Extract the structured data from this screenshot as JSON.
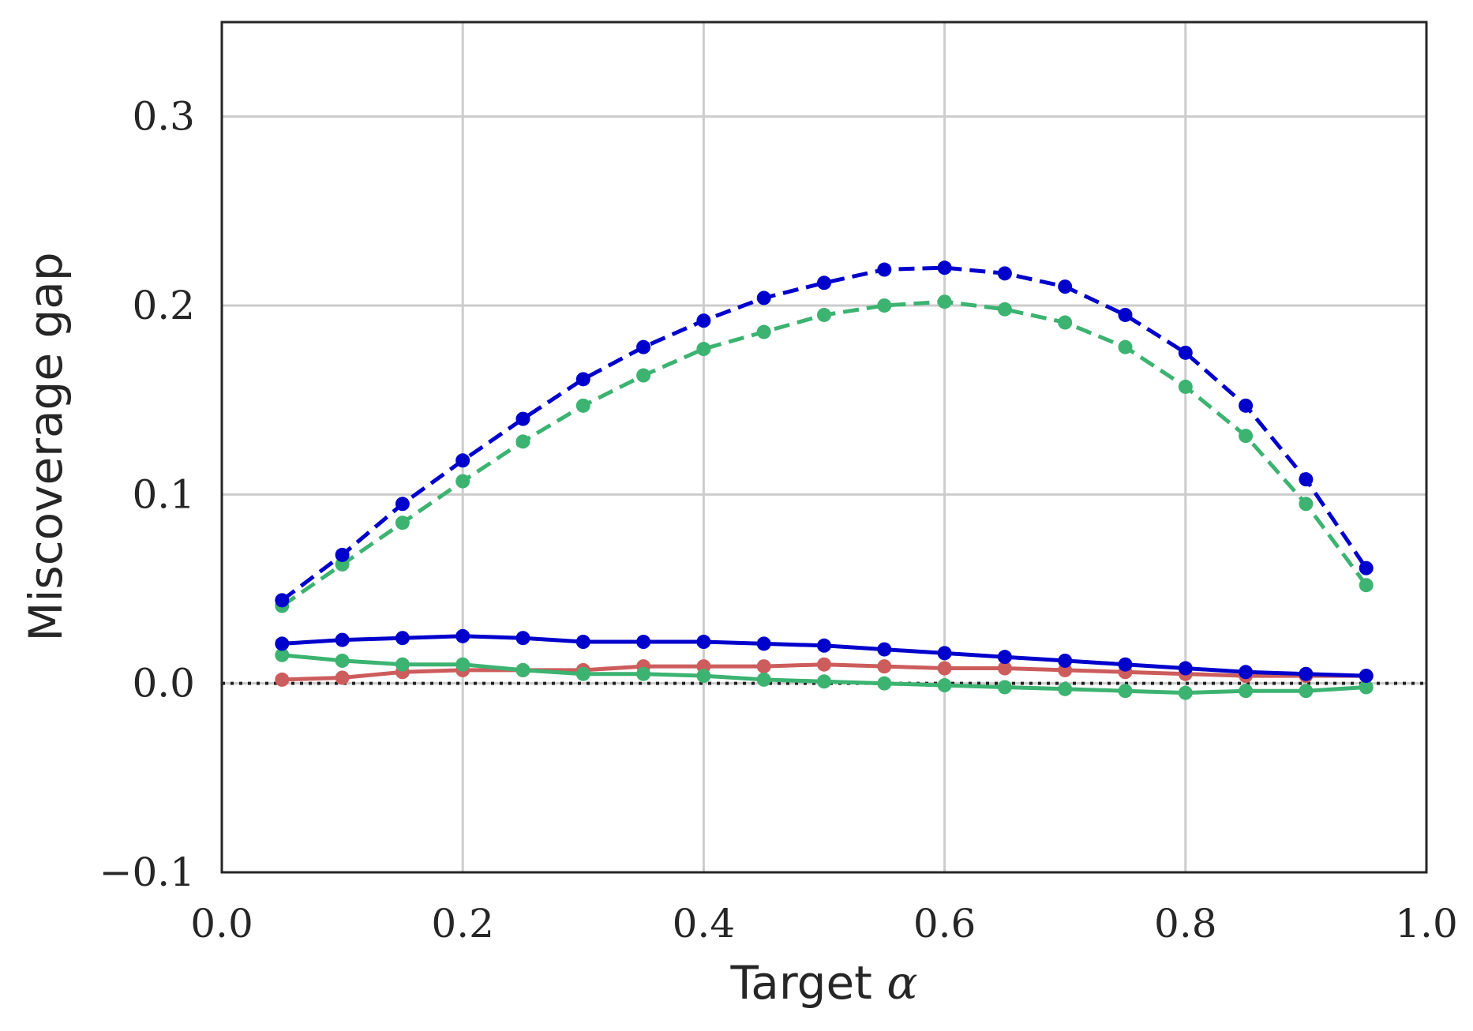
{
  "chart_data": {
    "type": "line",
    "title": "",
    "xlabel": "Target",
    "xlabel_symbol": "α",
    "ylabel": "Miscoverage gap",
    "xlim": [
      0.0,
      1.0
    ],
    "ylim": [
      -0.1,
      0.35
    ],
    "xticks": [
      0.0,
      0.2,
      0.4,
      0.6,
      0.8,
      1.0
    ],
    "xtick_labels": [
      "0.0",
      "0.2",
      "0.4",
      "0.6",
      "0.8",
      "1.0"
    ],
    "yticks": [
      -0.1,
      0.0,
      0.1,
      0.2,
      0.3
    ],
    "ytick_labels": [
      "−0.1",
      "0.0",
      "0.1",
      "0.2",
      "0.3"
    ],
    "grid": true,
    "reference_line": {
      "y": 0.0,
      "style": "dotted",
      "color": "#222222"
    },
    "x": [
      0.05,
      0.1,
      0.15,
      0.2,
      0.25,
      0.3,
      0.35,
      0.4,
      0.45,
      0.5,
      0.55,
      0.6,
      0.65,
      0.7,
      0.75,
      0.8,
      0.85,
      0.9,
      0.95
    ],
    "series": [
      {
        "color": "#0000cc",
        "style": "dashed",
        "values": [
          0.044,
          0.068,
          0.095,
          0.118,
          0.14,
          0.161,
          0.178,
          0.192,
          0.204,
          0.212,
          0.219,
          0.22,
          0.217,
          0.21,
          0.195,
          0.175,
          0.147,
          0.108,
          0.061
        ]
      },
      {
        "color": "#3cb371",
        "style": "dashed",
        "values": [
          0.041,
          0.063,
          0.085,
          0.107,
          0.128,
          0.147,
          0.163,
          0.177,
          0.186,
          0.195,
          0.2,
          0.202,
          0.198,
          0.191,
          0.178,
          0.157,
          0.131,
          0.095,
          0.052
        ]
      },
      {
        "color": "#0000cc",
        "style": "solid",
        "values": [
          0.021,
          0.023,
          0.024,
          0.025,
          0.024,
          0.022,
          0.022,
          0.022,
          0.021,
          0.02,
          0.018,
          0.016,
          0.014,
          0.012,
          0.01,
          0.008,
          0.006,
          0.005,
          0.004
        ]
      },
      {
        "color": "#cd5c5c",
        "style": "solid",
        "values": [
          0.002,
          0.003,
          0.006,
          0.007,
          0.007,
          0.007,
          0.009,
          0.009,
          0.009,
          0.01,
          0.009,
          0.008,
          0.008,
          0.007,
          0.006,
          0.005,
          0.004,
          0.004,
          0.004
        ]
      },
      {
        "color": "#3cb371",
        "style": "solid",
        "values": [
          0.015,
          0.012,
          0.01,
          0.01,
          0.007,
          0.005,
          0.005,
          0.004,
          0.002,
          0.001,
          0.0,
          -0.001,
          -0.002,
          -0.003,
          -0.004,
          -0.005,
          -0.004,
          -0.004,
          -0.002
        ]
      }
    ]
  }
}
